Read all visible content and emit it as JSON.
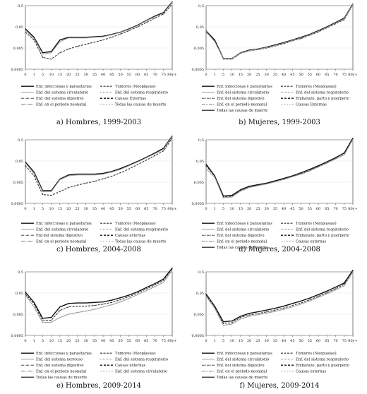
{
  "colors": {
    "total": "#111111",
    "dark": "#333333",
    "mid": "#666666",
    "light": "#999999",
    "grid": "#d9d9d9"
  },
  "chart_data": [
    {
      "type": "line",
      "caption": "a) Hombres, 1999-2003",
      "x": [
        "0",
        "1",
        "5",
        "10",
        "15",
        "20",
        "25",
        "30",
        "35",
        "40",
        "45",
        "50",
        "55",
        "60",
        "65",
        "70",
        "75",
        "80y+"
      ],
      "yticks": [
        "0,5",
        "0,05",
        "0,005",
        "0,0005"
      ],
      "ylim": [
        0.0005,
        0.5
      ],
      "log_y": true,
      "legend": [
        "Enf. infecciosas y parasitarias",
        "Tumores (Neoplasias)",
        "Enf. del sistema circulatorio",
        "Enf. del sistema respiratorio",
        "Enf. del sistema digestivo",
        "Causas Externas",
        "Enf. en el periodo neonatal",
        "Todas las causas de muerte"
      ],
      "series": [
        {
          "values": [
            0.04,
            0.016,
            0.003,
            0.0034,
            0.012,
            0.016,
            0.016,
            0.016,
            0.017,
            0.018,
            0.022,
            0.028,
            0.04,
            0.06,
            0.1,
            0.16,
            0.24,
            0.75
          ]
        },
        {
          "values": [
            0.028,
            0.012,
            0.0018,
            0.0015,
            0.003,
            0.0045,
            0.006,
            0.0075,
            0.0095,
            0.012,
            0.016,
            0.023,
            0.033,
            0.05,
            0.08,
            0.13,
            0.2,
            0.6
          ]
        },
        {
          "values": [
            0.035,
            0.014,
            0.0026,
            0.003,
            0.01,
            0.015,
            0.015,
            0.015,
            0.016,
            0.017,
            0.021,
            0.027,
            0.038,
            0.057,
            0.095,
            0.15,
            0.22,
            0.7
          ]
        }
      ]
    },
    {
      "type": "line",
      "caption": "b) Mujeres, 1999-2003",
      "x": [
        "0",
        "1",
        "5",
        "10",
        "15",
        "20",
        "25",
        "30",
        "35",
        "40",
        "45",
        "50",
        "55",
        "60",
        "65",
        "70",
        "75",
        "80y+"
      ],
      "yticks": [
        "0,5",
        "0,05",
        "0,005",
        "0,0005"
      ],
      "ylim": [
        0.0005,
        0.5
      ],
      "log_y": true,
      "legend": [
        "Enf. infecciosas y parasitarias",
        "Tumores (Neoplasias)",
        "Enf. del sistema circulatorio",
        "Enf. del sistema respiratorio",
        "Enf. del sistema digestivo",
        "Embarazo, parto y puerperio",
        "Enf. en el periodo neonatal",
        "Causas Externas",
        "Todas las causas de muerte"
      ],
      "series": [
        {
          "values": [
            0.032,
            0.012,
            0.0016,
            0.0016,
            0.003,
            0.004,
            0.0045,
            0.0055,
            0.007,
            0.009,
            0.012,
            0.016,
            0.022,
            0.033,
            0.05,
            0.08,
            0.13,
            0.6
          ]
        },
        {
          "values": [
            0.028,
            0.011,
            0.0015,
            0.0015,
            0.0028,
            0.0037,
            0.0042,
            0.005,
            0.0063,
            0.008,
            0.011,
            0.014,
            0.02,
            0.029,
            0.045,
            0.07,
            0.11,
            0.55
          ]
        },
        {
          "values": [
            0.03,
            0.01,
            0.0016,
            0.0016,
            0.0029,
            0.0038,
            0.0044,
            0.0052,
            0.0066,
            0.0085,
            0.0115,
            0.015,
            0.021,
            0.031,
            0.047,
            0.075,
            0.12,
            0.57
          ]
        }
      ]
    },
    {
      "type": "line",
      "caption": "c) Hombres, 2004-2008",
      "x": [
        "0",
        "1",
        "5",
        "10",
        "15",
        "20",
        "25",
        "30",
        "35",
        "40",
        "45",
        "50",
        "55",
        "60",
        "65",
        "70",
        "75",
        "80y+"
      ],
      "yticks": [
        "0,5",
        "0,05",
        "0,005",
        "0,0005"
      ],
      "ylim": [
        0.0005,
        0.5
      ],
      "log_y": true,
      "legend": [
        "Enf. infecciosas y parasitarias",
        "Tumores (Neoplasias)",
        "Enf. del sistema circulatorio",
        "Enf. del sistema respiratorio",
        "Enf.del sistema digestivo",
        "Causas externas",
        "Enf. en el periodo neonatal",
        "Todas las causas de muerte"
      ],
      "series": [
        {
          "values": [
            0.045,
            0.015,
            0.002,
            0.002,
            0.007,
            0.011,
            0.012,
            0.012,
            0.012,
            0.013,
            0.016,
            0.022,
            0.032,
            0.048,
            0.075,
            0.12,
            0.2,
            0.75
          ]
        },
        {
          "values": [
            0.03,
            0.01,
            0.0013,
            0.0012,
            0.0018,
            0.0028,
            0.0036,
            0.0045,
            0.0055,
            0.0072,
            0.0095,
            0.014,
            0.021,
            0.034,
            0.055,
            0.09,
            0.15,
            0.6
          ]
        },
        {
          "values": [
            0.04,
            0.013,
            0.0018,
            0.0018,
            0.0065,
            0.01,
            0.011,
            0.011,
            0.011,
            0.012,
            0.015,
            0.02,
            0.03,
            0.045,
            0.07,
            0.11,
            0.18,
            0.7
          ]
        }
      ]
    },
    {
      "type": "line",
      "caption": "d) Mujeres, 2004-2008",
      "x": [
        "0",
        "1",
        "5",
        "10",
        "15",
        "20",
        "25",
        "30",
        "35",
        "40",
        "45",
        "50",
        "55",
        "60",
        "65",
        "70",
        "75",
        "80y+"
      ],
      "yticks": [
        "0,5",
        "0,05",
        "0,005",
        "0,0005"
      ],
      "ylim": [
        0.0005,
        0.5
      ],
      "log_y": true,
      "legend": [
        "Enf. infecciosas y parasitarias",
        "Tumores (Neoplasias)",
        "Enf. del sistema circulatorio",
        "Enf. del sistema respiratorio",
        "Enf. del sistema digestivo",
        "Embarazo, parto y puerperio",
        "Enf. en el periodo neonatal",
        "Causas externas",
        "Todas las causas de muerte"
      ],
      "series": [
        {
          "values": [
            0.035,
            0.01,
            0.0011,
            0.0012,
            0.0022,
            0.0032,
            0.0038,
            0.0045,
            0.0058,
            0.0075,
            0.01,
            0.014,
            0.02,
            0.03,
            0.046,
            0.072,
            0.12,
            0.6
          ]
        },
        {
          "values": [
            0.03,
            0.0095,
            0.001,
            0.0011,
            0.002,
            0.003,
            0.0035,
            0.0042,
            0.0053,
            0.0068,
            0.0092,
            0.013,
            0.018,
            0.027,
            0.041,
            0.064,
            0.1,
            0.55
          ]
        },
        {
          "values": [
            0.022,
            0.0085,
            0.0009,
            0.001,
            0.0019,
            0.0028,
            0.0034,
            0.0041,
            0.0052,
            0.0067,
            0.009,
            0.012,
            0.017,
            0.026,
            0.04,
            0.062,
            0.1,
            0.52
          ]
        }
      ]
    },
    {
      "type": "line",
      "caption": "e) Hombres, 2009-2014",
      "x": [
        "0",
        "1",
        "5",
        "10",
        "15",
        "20",
        "25",
        "30",
        "35",
        "40",
        "45",
        "50",
        "55",
        "60",
        "65",
        "70",
        "75",
        "80y+"
      ],
      "yticks": [
        "0,5",
        "0,05",
        "0,005",
        "0,0005"
      ],
      "ylim": [
        0.0005,
        0.5
      ],
      "log_y": true,
      "legend": [
        "Enf. infecciosas y parasitarias",
        "Tumores (Neoplasias)",
        "Enf. del sistema nervioso",
        "Enf. del sistema respiratorio",
        "Enf. del sistema digestivo",
        "Causas externas",
        "Enf. en el periodo neonatal",
        "Enf. del sistema circulatorio",
        "Todas las causas de muerte"
      ],
      "series": [
        {
          "values": [
            0.055,
            0.018,
            0.0032,
            0.0035,
            0.011,
            0.016,
            0.017,
            0.017,
            0.018,
            0.019,
            0.023,
            0.03,
            0.04,
            0.058,
            0.09,
            0.14,
            0.23,
            0.75
          ]
        },
        {
          "values": [
            0.045,
            0.015,
            0.0025,
            0.0026,
            0.0075,
            0.011,
            0.012,
            0.012,
            0.013,
            0.015,
            0.018,
            0.024,
            0.034,
            0.05,
            0.078,
            0.12,
            0.2,
            0.7
          ]
        },
        {
          "values": [
            0.04,
            0.011,
            0.002,
            0.0021,
            0.0035,
            0.005,
            0.006,
            0.007,
            0.0085,
            0.011,
            0.014,
            0.019,
            0.028,
            0.042,
            0.065,
            0.1,
            0.16,
            0.6
          ]
        }
      ]
    },
    {
      "type": "line",
      "caption": "f) Mujeres, 2009-2014",
      "x": [
        "0",
        "1",
        "5",
        "10",
        "15",
        "20",
        "25",
        "30",
        "35",
        "40",
        "45",
        "50",
        "55",
        "60",
        "65",
        "70",
        "75",
        "80y+"
      ],
      "yticks": [
        "0,5",
        "0,05",
        "0,005",
        "0,0005"
      ],
      "ylim": [
        0.0005,
        0.5
      ],
      "log_y": true,
      "legend": [
        "Enf. infecciosas y parasitarias",
        "Tumores (Neoplasias)",
        "Enf. del sistema circulatorio",
        "Enf. del sistema respiratorio",
        "Enf. del sistema digestivo",
        "Embarazo, parto y puerperio",
        "Enf. en el periodo neonatal",
        "Causas externas",
        "Todas las causas de muerte"
      ],
      "series": [
        {
          "values": [
            0.045,
            0.012,
            0.0022,
            0.0024,
            0.004,
            0.0055,
            0.0065,
            0.0078,
            0.0095,
            0.012,
            0.016,
            0.021,
            0.029,
            0.042,
            0.062,
            0.095,
            0.15,
            0.6
          ]
        },
        {
          "values": [
            0.04,
            0.011,
            0.0018,
            0.002,
            0.0035,
            0.0046,
            0.0054,
            0.0064,
            0.0078,
            0.0098,
            0.013,
            0.017,
            0.024,
            0.035,
            0.052,
            0.08,
            0.13,
            0.55
          ]
        },
        {
          "values": [
            0.035,
            0.0095,
            0.0015,
            0.0017,
            0.003,
            0.004,
            0.0047,
            0.0056,
            0.0068,
            0.0085,
            0.011,
            0.015,
            0.021,
            0.031,
            0.046,
            0.07,
            0.11,
            0.5
          ]
        }
      ]
    }
  ]
}
